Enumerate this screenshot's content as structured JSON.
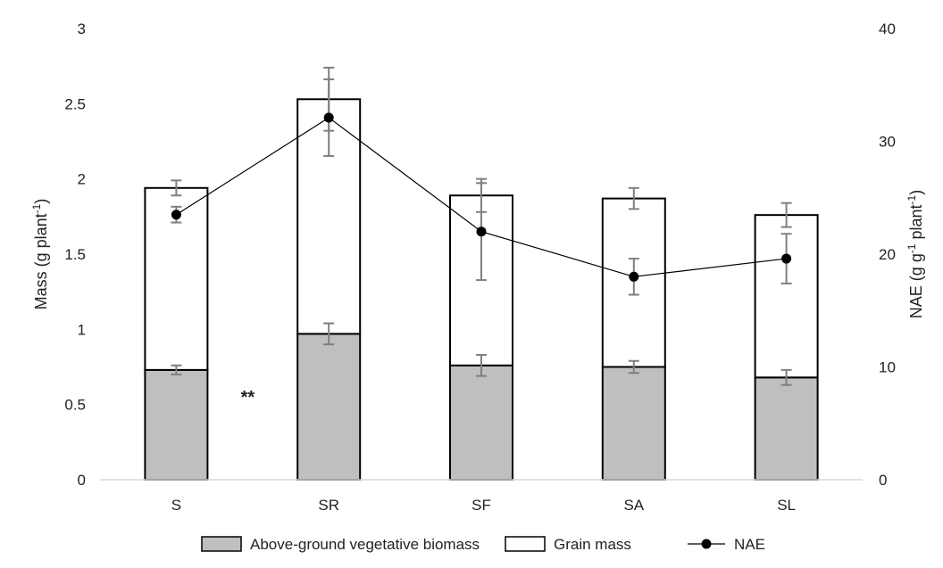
{
  "chart_data": {
    "type": "bar",
    "stacked": true,
    "categories": [
      "S",
      "SR",
      "SF",
      "SA",
      "SL"
    ],
    "y_left": {
      "label_main": "Mass (g plant",
      "label_sup": "-1",
      "label_end": ")",
      "ylim": [
        0,
        3
      ],
      "ticks": [
        0,
        0.5,
        1,
        1.5,
        2,
        2.5,
        3
      ]
    },
    "y_right": {
      "label_main": "NAE (g g",
      "label_sup1": "-1",
      "label_mid": " plant",
      "label_sup2": "-1",
      "label_end": ")",
      "ylim": [
        0,
        40
      ],
      "ticks": [
        0,
        10,
        20,
        30,
        40
      ]
    },
    "series": [
      {
        "name": "Above-ground vegetative biomass",
        "kind": "bar",
        "axis": "left",
        "color": "#bfbfbf",
        "values": [
          0.73,
          0.97,
          0.76,
          0.75,
          0.68
        ],
        "errors": [
          0.03,
          0.07,
          0.07,
          0.04,
          0.05
        ]
      },
      {
        "name": "Grain mass",
        "kind": "bar",
        "axis": "left",
        "color": "#ffffff",
        "values": [
          1.21,
          1.56,
          1.13,
          1.12,
          1.08
        ],
        "errors": [
          0.05,
          0.21,
          0.11,
          0.07,
          0.08
        ]
      },
      {
        "name": "NAE",
        "kind": "line",
        "axis": "right",
        "color": "#000000",
        "values": [
          23.5,
          32.1,
          22.0,
          18.0,
          19.6
        ],
        "errors": [
          0.7,
          3.4,
          4.3,
          1.6,
          2.2
        ]
      }
    ],
    "annotations": [
      {
        "text": "**",
        "category": "S"
      }
    ],
    "legend_position": "bottom",
    "grid": false
  }
}
